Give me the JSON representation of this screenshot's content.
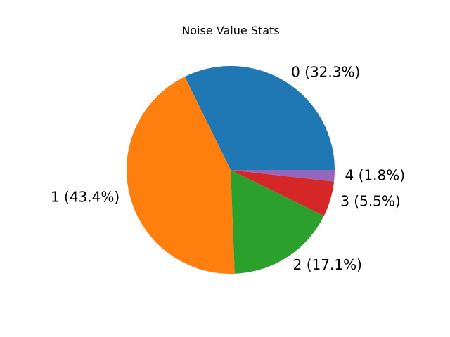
{
  "chart_data": {
    "type": "pie",
    "title": "Noise Value Stats",
    "slices": [
      {
        "category": "0",
        "percent": 32.3,
        "label": "0 (32.3%)",
        "color": "#1f77b4"
      },
      {
        "category": "1",
        "percent": 43.4,
        "label": "1 (43.4%)",
        "color": "#ff7f0e"
      },
      {
        "category": "2",
        "percent": 17.1,
        "label": "2 (17.1%)",
        "color": "#2ca02c"
      },
      {
        "category": "3",
        "percent": 5.5,
        "label": "3 (5.5%)",
        "color": "#d62728"
      },
      {
        "category": "4",
        "percent": 1.8,
        "label": "4 (1.8%)",
        "color": "#9467bd"
      }
    ],
    "start_angle_deg": 0,
    "direction": "counterclockwise",
    "legend": "none"
  }
}
